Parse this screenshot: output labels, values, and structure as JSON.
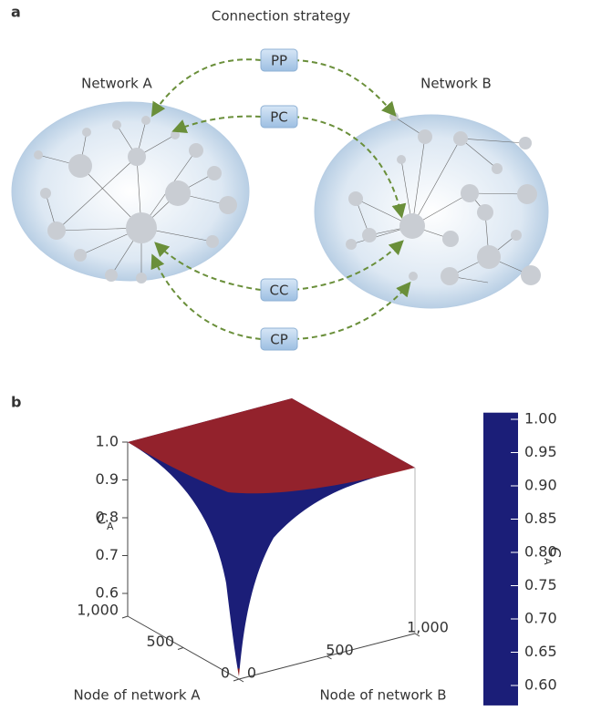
{
  "panel_a": {
    "label": "a",
    "title": "Connection strategy",
    "network_a": "Network A",
    "network_b": "Network B",
    "strategies": [
      "PP",
      "PC",
      "CC",
      "CP"
    ]
  },
  "chart_data": {
    "type": "surface3d",
    "panel_label": "b",
    "zlabel": "C",
    "zlabel_sub": "A",
    "xlabel": "Node of network A",
    "ylabel": "Node of network B",
    "xlim": [
      0,
      1000
    ],
    "xticks": [
      0,
      500,
      {
        "value": 1000,
        "label": "1,000"
      }
    ],
    "ylim": [
      0,
      1000
    ],
    "yticks": [
      0,
      500,
      {
        "value": 1000,
        "label": "1,000"
      }
    ],
    "zlim": [
      0.55,
      1.0
    ],
    "zticks": [
      0.6,
      0.7,
      0.8,
      0.9,
      {
        "value": 1.0,
        "label": "1.0"
      }
    ],
    "colorbar": {
      "label": "C",
      "label_sub": "A",
      "clim": [
        0.57,
        1.01
      ],
      "ticks": [
        {
          "value": 0.6,
          "label": "0.60"
        },
        0.65,
        {
          "value": 0.7,
          "label": "0.70"
        },
        0.75,
        {
          "value": 0.8,
          "label": "0.80"
        },
        0.85,
        {
          "value": 0.9,
          "label": "0.90"
        },
        0.95,
        {
          "value": 1.0,
          "label": "1.00"
        }
      ],
      "colors": [
        "#1b1e78",
        "#1f4fb8",
        "#1f9ad6",
        "#3cc4b0",
        "#a8d94a",
        "#f6e22a",
        "#f7a41d",
        "#ef4a25",
        "#d3241f",
        "#8b1a1a"
      ]
    }
  }
}
